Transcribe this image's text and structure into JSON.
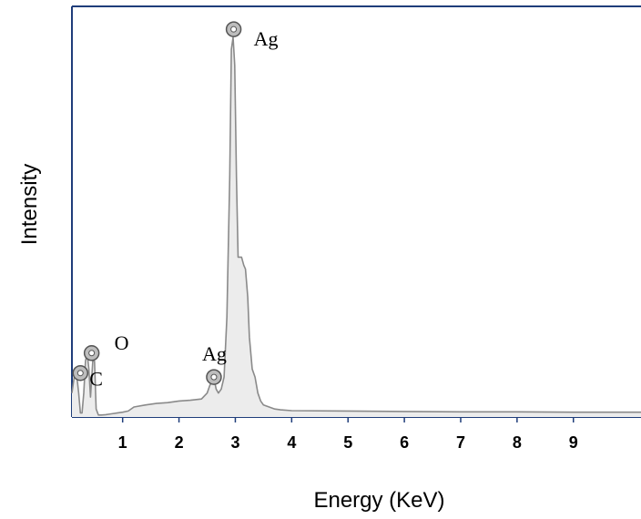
{
  "chart_data": {
    "type": "line",
    "title": "",
    "xlabel": "Energy (KeV)",
    "ylabel": "Intensity",
    "xlim": [
      0.1,
      10.2
    ],
    "ylim": [
      0,
      100
    ],
    "x_ticks": [
      "1",
      "2",
      "3",
      "4",
      "5",
      "6",
      "7",
      "8",
      "9"
    ],
    "grid": false,
    "y_tick_labels_shown": false,
    "series": [
      {
        "color": "#8a8a8a",
        "fill": "#ececec",
        "x": [
          0.1,
          0.15,
          0.18,
          0.22,
          0.25,
          0.28,
          0.31,
          0.34,
          0.37,
          0.4,
          0.43,
          0.47,
          0.5,
          0.53,
          0.57,
          0.62,
          0.7,
          0.8,
          0.9,
          1.0,
          1.1,
          1.2,
          1.4,
          1.6,
          1.8,
          2.0,
          2.2,
          2.4,
          2.5,
          2.55,
          2.6,
          2.63,
          2.66,
          2.7,
          2.75,
          2.8,
          2.85,
          2.9,
          2.93,
          2.96,
          2.99,
          3.02,
          3.05,
          3.08,
          3.11,
          3.15,
          3.18,
          3.22,
          3.25,
          3.3,
          3.35,
          3.4,
          3.45,
          3.5,
          3.6,
          3.7,
          3.8,
          4.0,
          5.0,
          6.0,
          7.0,
          8.0,
          9.0,
          10.2
        ],
        "y": [
          6,
          11,
          11,
          6,
          1,
          1,
          6,
          14,
          16,
          12,
          5,
          14,
          14,
          2,
          0.5,
          0.5,
          0.6,
          0.8,
          1.0,
          1.2,
          1.5,
          2.5,
          3.0,
          3.4,
          3.6,
          4.0,
          4.2,
          4.5,
          6,
          8,
          9,
          9,
          7,
          6,
          7,
          10,
          25,
          60,
          92,
          95,
          88,
          60,
          40,
          40,
          40,
          38,
          37,
          30,
          20,
          12,
          10,
          6,
          4,
          3,
          2.5,
          2,
          1.8,
          1.6,
          1.5,
          1.4,
          1.3,
          1.3,
          1.2,
          1.2
        ]
      }
    ],
    "annotations": [
      {
        "text": "Ag",
        "x": 2.97,
        "y": 97
      },
      {
        "text": "Ag",
        "x": 2.62,
        "y": 10
      },
      {
        "text": "O",
        "x": 0.45,
        "y": 16
      },
      {
        "text": "C",
        "x": 0.25,
        "y": 11
      }
    ]
  }
}
